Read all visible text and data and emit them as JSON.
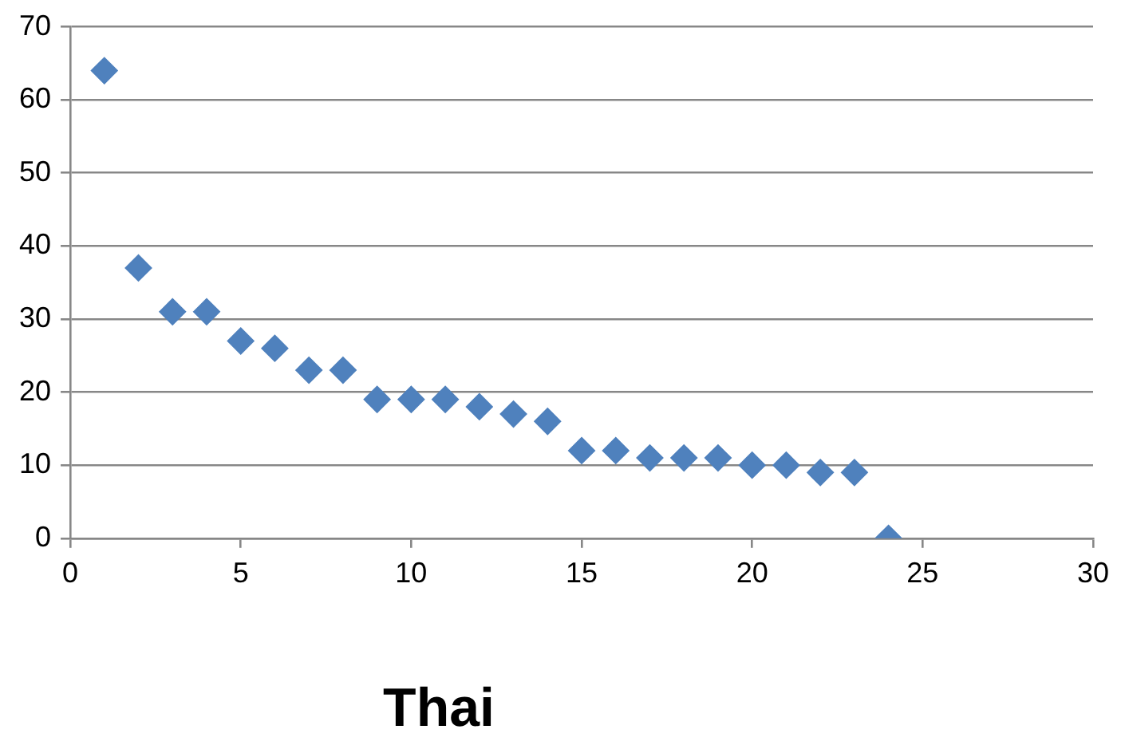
{
  "chart_data": {
    "type": "scatter",
    "title": "Thai",
    "x": [
      1,
      2,
      3,
      4,
      5,
      6,
      7,
      8,
      9,
      10,
      11,
      12,
      13,
      14,
      15,
      16,
      17,
      18,
      19,
      20,
      21,
      22,
      23,
      24
    ],
    "series": [
      {
        "color": "#4f81bd",
        "values": [
          64,
          37,
          31,
          31,
          27,
          26,
          23,
          23,
          19,
          19,
          19,
          18,
          17,
          16,
          12,
          12,
          11,
          11,
          11,
          10,
          10,
          9,
          9,
          0
        ]
      }
    ],
    "xlim": [
      0,
      30
    ],
    "xticks": [
      0,
      5,
      10,
      15,
      20,
      25,
      30
    ],
    "ylim": [
      0,
      70
    ],
    "yticks": [
      0,
      10,
      20,
      30,
      40,
      50,
      60,
      70
    ],
    "grid": "y",
    "marker": "diamond",
    "legend": false
  }
}
